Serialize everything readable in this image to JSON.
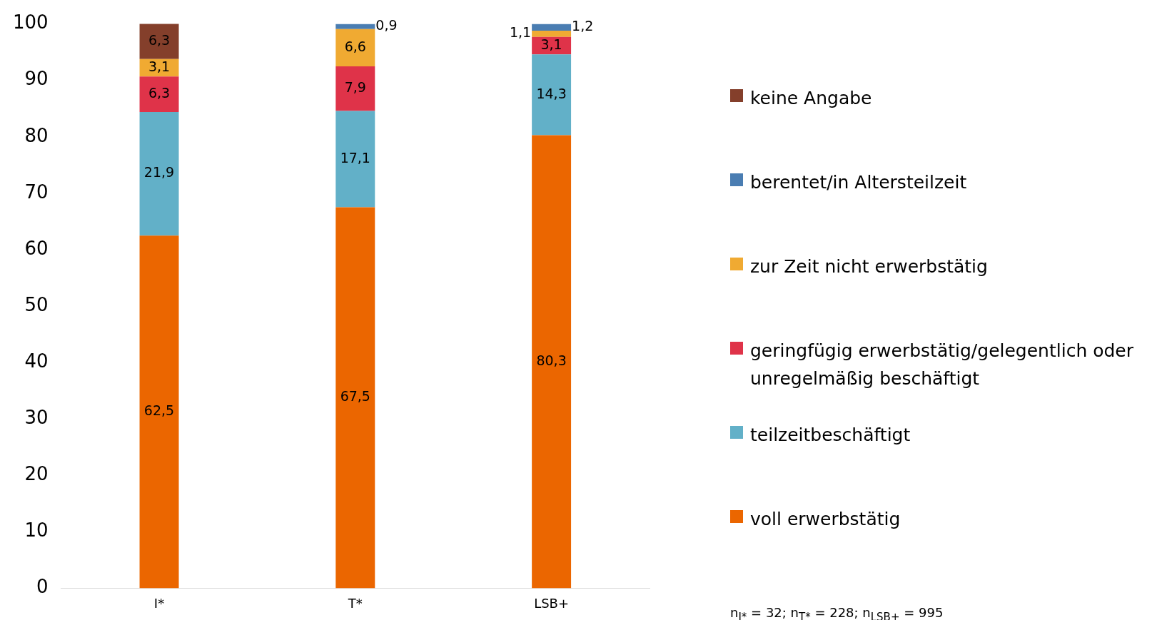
{
  "chart_data": {
    "type": "bar",
    "stacked": true,
    "categories": [
      "I*",
      "T*",
      "LSB+"
    ],
    "series": [
      {
        "name": "voll erwerbstätig",
        "color": "#eb6600",
        "values": [
          62.5,
          67.5,
          80.3
        ],
        "value_labels": [
          "62,5",
          "67,5",
          "80,3"
        ]
      },
      {
        "name": "teilzeitbeschäftigt",
        "color": "#62b0c8",
        "values": [
          21.9,
          17.1,
          14.3
        ],
        "value_labels": [
          "21,9",
          "17,1",
          "14,3"
        ]
      },
      {
        "name": "geringfügig erwerbstätig/gelegentlich oder unregelmäßig beschäftigt",
        "color": "#df3349",
        "values": [
          6.3,
          7.9,
          3.1
        ],
        "value_labels": [
          "6,3",
          "7,9",
          "3,1"
        ]
      },
      {
        "name": "zur Zeit nicht erwerbstätig",
        "color": "#f0aa32",
        "values": [
          3.1,
          6.6,
          1.1
        ],
        "value_labels": [
          "3,1",
          "6,6",
          "1,1"
        ]
      },
      {
        "name": "berentet/in Altersteilzeit",
        "color": "#4a7db2",
        "values": [
          null,
          0.9,
          1.2
        ],
        "value_labels": [
          null,
          "0,9",
          "1,2"
        ]
      },
      {
        "name": "keine Angabe",
        "color": "#843f2b",
        "values": [
          6.3,
          null,
          null
        ],
        "value_labels": [
          "6,3",
          null,
          null
        ]
      }
    ],
    "ylim": [
      0,
      100
    ],
    "yticks": [
      0,
      10,
      20,
      30,
      40,
      50,
      60,
      70,
      80,
      90,
      100
    ],
    "grid": false,
    "legend": "right",
    "annotations": [
      "n$_{I*}$ = 32; n$_{T*}$ = 228; n$_{LSB+}$ = 995"
    ]
  }
}
